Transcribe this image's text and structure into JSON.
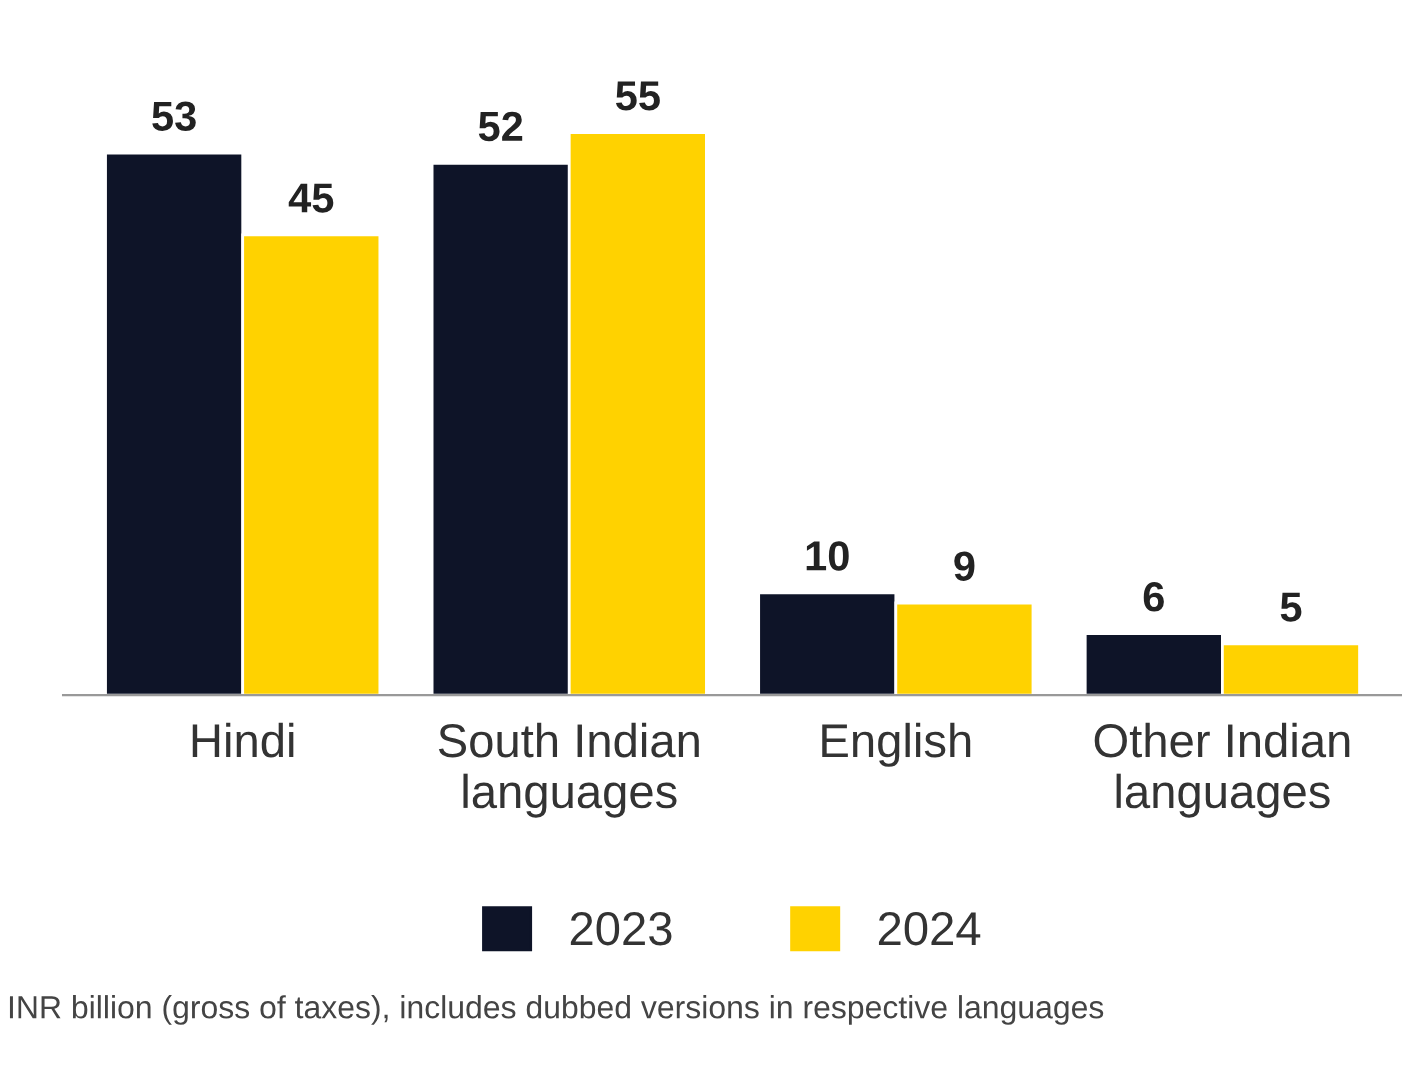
{
  "chart_data": {
    "type": "bar",
    "categories": [
      "Hindi",
      "South Indian\nlanguages",
      "English",
      "Other Indian\nlanguages"
    ],
    "series": [
      {
        "name": "2023",
        "color": "#0e1428",
        "values": [
          53,
          52,
          10,
          6
        ]
      },
      {
        "name": "2024",
        "color": "#ffd200",
        "values": [
          45,
          55,
          9,
          5
        ]
      }
    ],
    "data_labels": true,
    "tick_labels": "x",
    "legend": "bottom",
    "annotations": [
      "INR billion (gross of taxes), includes dubbed versions in respective languages"
    ]
  }
}
